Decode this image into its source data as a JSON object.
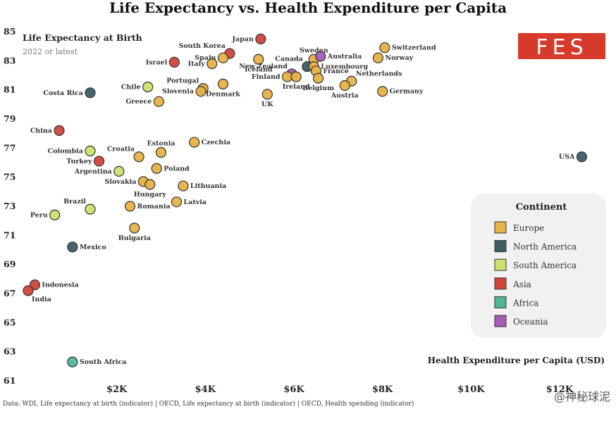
{
  "header": {
    "title": "Life Expectancy vs. Health Expenditure per Capita",
    "subtitle": "Life Expectancy at Birth",
    "note": "2022 or latest"
  },
  "logo": {
    "text": "FES",
    "color": "#d63a2a"
  },
  "footer": {
    "source": "Data: WDI, Life expectancy at birth (indicator) | OECD, Life expectancy at birth (indicator) | OECD, Health spending (indicator)",
    "watermark": "@神秘球泥"
  },
  "colors": {
    "Europe": "#e7b246",
    "North America": "#3d5c66",
    "South America": "#cfe06f",
    "Asia": "#d1463b",
    "Africa": "#52b598",
    "Oceania": "#a65bb7"
  },
  "chart_data": {
    "type": "scatter",
    "title": "Life Expectancy vs. Health Expenditure per Capita",
    "xlabel": "Health Expenditure per Capita (USD)",
    "ylabel": "Life Expectancy at Birth",
    "xlim": [
      0,
      12700
    ],
    "ylim": [
      61,
      85
    ],
    "x_ticks": [
      {
        "value": 2000,
        "label": "$2K"
      },
      {
        "value": 4000,
        "label": "$4K"
      },
      {
        "value": 6000,
        "label": "$6K"
      },
      {
        "value": 8000,
        "label": "$8K"
      },
      {
        "value": 10000,
        "label": "$10K"
      },
      {
        "value": 12000,
        "label": "$12K"
      }
    ],
    "y_ticks": [
      61,
      63,
      65,
      67,
      69,
      71,
      73,
      75,
      77,
      79,
      81,
      83,
      85
    ],
    "grid": false,
    "legend": {
      "title": "Continent",
      "placement": "right",
      "entries": [
        "Europe",
        "North America",
        "South America",
        "Asia",
        "Africa",
        "Oceania"
      ]
    },
    "points": [
      {
        "label": "Japan",
        "group": "Asia",
        "x": 5250,
        "y": 84.5,
        "label_pos": "left"
      },
      {
        "label": "South Korea",
        "group": "Asia",
        "x": 4550,
        "y": 83.5,
        "label_pos": "topleft"
      },
      {
        "label": "Spain",
        "group": "Europe",
        "x": 4400,
        "y": 83.2,
        "label_pos": "left"
      },
      {
        "label": "Italy",
        "group": "Europe",
        "x": 4150,
        "y": 82.8,
        "label_pos": "left"
      },
      {
        "label": "Israel",
        "group": "Asia",
        "x": 3300,
        "y": 82.9,
        "label_pos": "left"
      },
      {
        "label": "Iceland",
        "group": "Europe",
        "x": 5200,
        "y": 83.1,
        "label_pos": "below"
      },
      {
        "label": "Canada",
        "group": "North America",
        "x": 6300,
        "y": 82.6,
        "label_pos": "topleft"
      },
      {
        "label": "Sweden",
        "group": "Europe",
        "x": 6450,
        "y": 83.1,
        "label_pos": "top"
      },
      {
        "label": "Australia",
        "group": "Oceania",
        "x": 6600,
        "y": 83.3,
        "label_pos": "right"
      },
      {
        "label": "New Zealand",
        "group": "Oceania",
        "x": 5950,
        "y": 82.1,
        "label_pos": "topleft"
      },
      {
        "label": "Luxembourg",
        "group": "Europe",
        "x": 6450,
        "y": 82.6,
        "label_pos": "right"
      },
      {
        "label": "France",
        "group": "Europe",
        "x": 6500,
        "y": 82.3,
        "label_pos": "right"
      },
      {
        "label": "Switzerland",
        "group": "Europe",
        "x": 8050,
        "y": 83.9,
        "label_pos": "right"
      },
      {
        "label": "Norway",
        "group": "Europe",
        "x": 7900,
        "y": 83.2,
        "label_pos": "right"
      },
      {
        "label": "Netherlands",
        "group": "Europe",
        "x": 7300,
        "y": 81.6,
        "label_pos": "topright"
      },
      {
        "label": "Belgium",
        "group": "Europe",
        "x": 6550,
        "y": 81.8,
        "label_pos": "below"
      },
      {
        "label": "Finland",
        "group": "Europe",
        "x": 5850,
        "y": 81.9,
        "label_pos": "left"
      },
      {
        "label": "Ireland",
        "group": "Europe",
        "x": 6050,
        "y": 81.9,
        "label_pos": "below"
      },
      {
        "label": "Austria",
        "group": "Europe",
        "x": 7150,
        "y": 81.3,
        "label_pos": "below"
      },
      {
        "label": "Germany",
        "group": "Europe",
        "x": 8000,
        "y": 80.9,
        "label_pos": "right"
      },
      {
        "label": "Denmark",
        "group": "Europe",
        "x": 4400,
        "y": 81.4,
        "label_pos": "below"
      },
      {
        "label": "Portugal",
        "group": "Europe",
        "x": 3950,
        "y": 81.1,
        "label_pos": "topleft"
      },
      {
        "label": "Slovenia",
        "group": "Europe",
        "x": 3900,
        "y": 80.9,
        "label_pos": "left"
      },
      {
        "label": "UK",
        "group": "Europe",
        "x": 5400,
        "y": 80.7,
        "label_pos": "below"
      },
      {
        "label": "Chile",
        "group": "South America",
        "x": 2700,
        "y": 81.2,
        "label_pos": "left"
      },
      {
        "label": "Greece",
        "group": "Europe",
        "x": 2950,
        "y": 80.2,
        "label_pos": "left"
      },
      {
        "label": "Costa Rica",
        "group": "North America",
        "x": 1400,
        "y": 80.8,
        "label_pos": "left"
      },
      {
        "label": "China",
        "group": "Asia",
        "x": 700,
        "y": 78.2,
        "label_pos": "left"
      },
      {
        "label": "Czechia",
        "group": "Europe",
        "x": 3750,
        "y": 77.4,
        "label_pos": "right"
      },
      {
        "label": "Estonia",
        "group": "Europe",
        "x": 3000,
        "y": 76.7,
        "label_pos": "top"
      },
      {
        "label": "Croatia",
        "group": "Europe",
        "x": 2500,
        "y": 76.4,
        "label_pos": "topleft"
      },
      {
        "label": "Colombia",
        "group": "South America",
        "x": 1400,
        "y": 76.8,
        "label_pos": "left"
      },
      {
        "label": "Turkey",
        "group": "Asia",
        "x": 1600,
        "y": 76.1,
        "label_pos": "left"
      },
      {
        "label": "Argentina",
        "group": "South America",
        "x": 2050,
        "y": 75.4,
        "label_pos": "left"
      },
      {
        "label": "Poland",
        "group": "Europe",
        "x": 2900,
        "y": 75.6,
        "label_pos": "right"
      },
      {
        "label": "Slovakia",
        "group": "Europe",
        "x": 2600,
        "y": 74.7,
        "label_pos": "left"
      },
      {
        "label": "Hungary",
        "group": "Europe",
        "x": 2750,
        "y": 74.5,
        "label_pos": "below"
      },
      {
        "label": "Lithuania",
        "group": "Europe",
        "x": 3500,
        "y": 74.4,
        "label_pos": "right"
      },
      {
        "label": "Latvia",
        "group": "Europe",
        "x": 3350,
        "y": 73.3,
        "label_pos": "right"
      },
      {
        "label": "Romania",
        "group": "Europe",
        "x": 2300,
        "y": 73.0,
        "label_pos": "right"
      },
      {
        "label": "Brazil",
        "group": "South America",
        "x": 1400,
        "y": 72.8,
        "label_pos": "topleft"
      },
      {
        "label": "Peru",
        "group": "South America",
        "x": 600,
        "y": 72.4,
        "label_pos": "left"
      },
      {
        "label": "Bulgaria",
        "group": "Europe",
        "x": 2400,
        "y": 71.5,
        "label_pos": "below"
      },
      {
        "label": "Mexico",
        "group": "North America",
        "x": 1000,
        "y": 70.2,
        "label_pos": "right"
      },
      {
        "label": "Indonesia",
        "group": "Asia",
        "x": 150,
        "y": 67.6,
        "label_pos": "right"
      },
      {
        "label": "India",
        "group": "Asia",
        "x": 0,
        "y": 67.2,
        "label_pos": "belowright"
      },
      {
        "label": "USA",
        "group": "North America",
        "x": 12500,
        "y": 76.4,
        "label_pos": "left"
      },
      {
        "label": "South Africa",
        "group": "Africa",
        "x": 1000,
        "y": 62.3,
        "label_pos": "right"
      }
    ]
  }
}
